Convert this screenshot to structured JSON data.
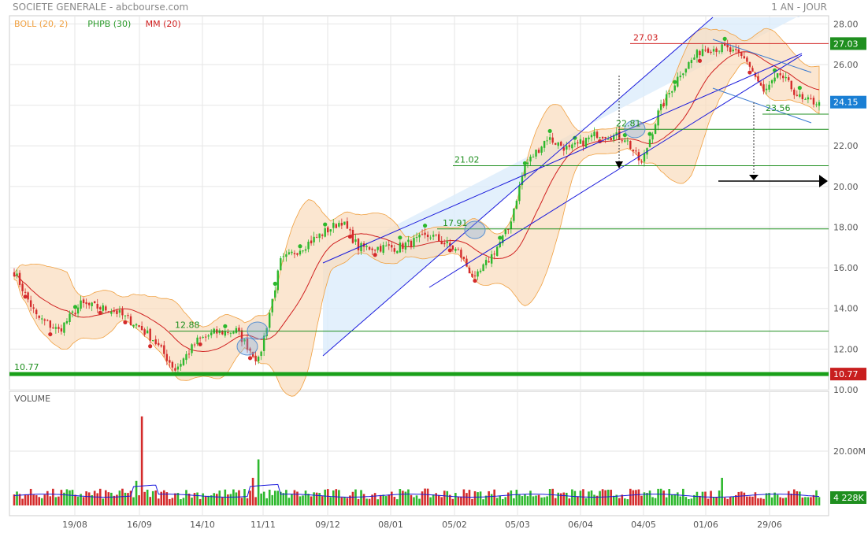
{
  "header": {
    "title": "SOCIETE GENERALE - abcbourse.com",
    "period": "1 AN - JOUR"
  },
  "legend": [
    {
      "label": "BOLL (20, 2)",
      "color": "#f0a040"
    },
    {
      "label": "PHPB (30)",
      "color": "#2a9a2a"
    },
    {
      "label": "MM (20)",
      "color": "#d02020"
    }
  ],
  "colors": {
    "up": "#2db82d",
    "down": "#d42b2b",
    "boll_fill": "#f9dcbc",
    "boll_line": "#f0a040",
    "mm": "#d02020",
    "channel": "#1a1adc",
    "channel_fill": "#dcecfb",
    "green_line": "#1f8f1f",
    "support": "#1aa01a",
    "volume_ma": "#1a1adc",
    "resistance": "#d02020"
  },
  "chart_data": [
    {
      "type": "candlestick",
      "title": "",
      "ylim": [
        10,
        28.4
      ],
      "yticks": [
        "10.00",
        "12.00",
        "14.00",
        "16.00",
        "18.00",
        "20.00",
        "22.00",
        "24.00",
        "26.00",
        "28.00"
      ],
      "xticks": [
        "19/08",
        "16/09",
        "14/10",
        "11/11",
        "09/12",
        "08/01",
        "05/02",
        "05/03",
        "06/04",
        "04/05",
        "01/06",
        "29/06"
      ],
      "anchors": [
        [
          0,
          15.8
        ],
        [
          8,
          13.6
        ],
        [
          16,
          12.9
        ],
        [
          24,
          14.2
        ],
        [
          36,
          13.9
        ],
        [
          44,
          13.2
        ],
        [
          50,
          12.5
        ],
        [
          58,
          11.0
        ],
        [
          66,
          12.4
        ],
        [
          72,
          12.8
        ],
        [
          80,
          12.9
        ],
        [
          88,
          11.4
        ],
        [
          92,
          13.8
        ],
        [
          96,
          16.3
        ],
        [
          110,
          17.6
        ],
        [
          118,
          18.3
        ],
        [
          124,
          17.0
        ],
        [
          138,
          17.0
        ],
        [
          150,
          17.6
        ],
        [
          160,
          16.8
        ],
        [
          166,
          15.4
        ],
        [
          172,
          16.6
        ],
        [
          178,
          17.9
        ],
        [
          184,
          21.0
        ],
        [
          192,
          22.4
        ],
        [
          200,
          21.8
        ],
        [
          210,
          22.6
        ],
        [
          220,
          22.4
        ],
        [
          226,
          21.1
        ],
        [
          232,
          23.6
        ],
        [
          240,
          25.6
        ],
        [
          248,
          26.8
        ],
        [
          256,
          26.8
        ],
        [
          264,
          26.2
        ],
        [
          270,
          24.6
        ],
        [
          276,
          25.5
        ],
        [
          284,
          24.2
        ],
        [
          290,
          24.15
        ]
      ],
      "current_price": "24.15",
      "level_labels": {
        "support_main": "10.77",
        "level_1288": "12.88",
        "level_1791": "17.91",
        "level_2102": "21.02",
        "level_2281": "22.81",
        "level_2356": "23.56",
        "level_2703": "27.03"
      },
      "levels": {
        "support_main": 10.77,
        "level_1288": 12.88,
        "level_1791": 17.91,
        "level_2102": 21.02,
        "level_2281": 22.81,
        "level_2356": 23.56,
        "level_2703": 27.03
      }
    },
    {
      "type": "bar",
      "title": "VOLUME",
      "yticks": [
        "20.00M"
      ],
      "current_volume": "4 228K"
    }
  ]
}
